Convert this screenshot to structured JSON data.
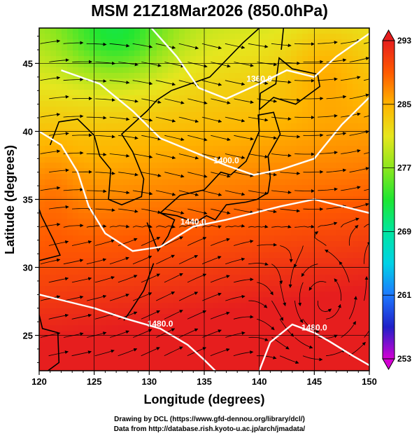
{
  "title": "MSM 21Z18Mar2026 (850.0hPa)",
  "chart_data": {
    "type": "heatmap",
    "title": "MSM 21Z18Mar2026 (850.0hPa)",
    "xlabel": "Longitude (degrees)",
    "ylabel": "Latitude  (degrees)",
    "xlim": [
      120,
      150
    ],
    "ylim": [
      22.4,
      47.6
    ],
    "x_ticks": [
      "120",
      "125",
      "130",
      "135",
      "140",
      "145",
      "150"
    ],
    "y_ticks": [
      "25",
      "30",
      "35",
      "40",
      "45"
    ],
    "grid": true,
    "colorbar": {
      "ticks": [
        "293",
        "285",
        "277",
        "269",
        "261",
        "253"
      ],
      "min": 253,
      "max": 293,
      "colors": [
        "#d400d4",
        "#2020c8",
        "#1e78ff",
        "#00d2e6",
        "#00e6a0",
        "#1ee632",
        "#8ce61e",
        "#e6e61e",
        "#ffb400",
        "#ff5a00",
        "#e61e1e"
      ]
    },
    "contours": [
      {
        "label": "1360.0",
        "points": [
          [
            130.2,
            47.6
          ],
          [
            132.5,
            45.5
          ],
          [
            134.5,
            43.2
          ],
          [
            137.0,
            42.4
          ],
          [
            140.0,
            43.5
          ],
          [
            142.5,
            44.5
          ],
          [
            145.0,
            44.0
          ],
          [
            147.0,
            45.5
          ],
          [
            150.0,
            47.2
          ]
        ]
      },
      {
        "label": "1400.0",
        "points": [
          [
            122.0,
            44.5
          ],
          [
            125.5,
            43.5
          ],
          [
            128.5,
            41.5
          ],
          [
            131.0,
            39.5
          ],
          [
            134.0,
            38.5
          ],
          [
            137.0,
            37.5
          ],
          [
            139.5,
            36.8
          ],
          [
            142.0,
            37.2
          ],
          [
            145.0,
            38.0
          ],
          [
            147.5,
            40.5
          ],
          [
            150.0,
            42.5
          ]
        ]
      },
      {
        "label": "1440.0",
        "points": [
          [
            120.0,
            40.0
          ],
          [
            122.0,
            39.0
          ],
          [
            123.5,
            37.0
          ],
          [
            124.5,
            34.5
          ],
          [
            126.0,
            32.5
          ],
          [
            128.5,
            31.2
          ],
          [
            131.0,
            31.5
          ],
          [
            134.0,
            33.0
          ],
          [
            137.0,
            33.5
          ],
          [
            139.5,
            34.0
          ],
          [
            142.0,
            34.5
          ],
          [
            145.0,
            35.0
          ],
          [
            147.5,
            34.5
          ],
          [
            150.0,
            34.0
          ]
        ]
      },
      {
        "label": "1480.0",
        "points": [
          [
            120.0,
            28.0
          ],
          [
            122.5,
            27.5
          ],
          [
            125.0,
            27.0
          ],
          [
            128.0,
            26.2
          ],
          [
            131.0,
            25.5
          ],
          [
            133.5,
            24.3
          ],
          [
            135.0,
            23.2
          ],
          [
            136.0,
            22.4
          ]
        ]
      },
      {
        "label": "1480.0",
        "points": [
          [
            140.0,
            22.4
          ],
          [
            141.0,
            24.5
          ],
          [
            143.0,
            25.8
          ],
          [
            145.0,
            25.2
          ],
          [
            146.5,
            24.5
          ],
          [
            148.5,
            23.5
          ],
          [
            150.0,
            22.8
          ]
        ]
      }
    ]
  },
  "credits": {
    "line1": "Drawing by DCL (https://www.gfd-dennou.org/library/dcl/)",
    "line2": "Data from http://database.rish.kyoto-u.ac.jp/arch/jmadata/"
  }
}
